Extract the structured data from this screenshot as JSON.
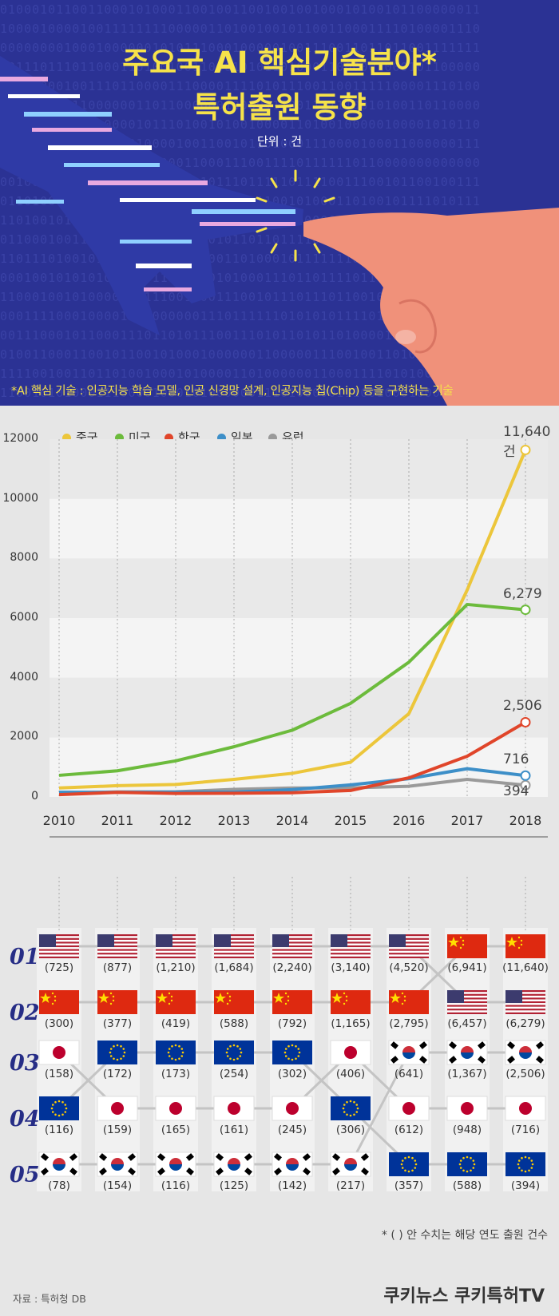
{
  "header": {
    "title_line1": "주요국 AI 핵심기술분야*",
    "title_line2": "특허출원 동향",
    "unit": "단위 : 건",
    "footnote": "*AI 핵심 기술 :  인공지능 학습 모델, 인공 신경망 설계, 인공지능 칩(Chip) 등을 구현하는 기술"
  },
  "colors": {
    "china": "#ecc63b",
    "usa": "#6cbb3c",
    "korea": "#e0452a",
    "japan": "#3d8fc8",
    "europe": "#9a9a9a",
    "header_bg": "#2b3294",
    "title": "#f6e24a"
  },
  "chart_data": {
    "type": "line",
    "x": [
      2010,
      2011,
      2012,
      2013,
      2014,
      2015,
      2016,
      2017,
      2018
    ],
    "ylim": [
      0,
      12000
    ],
    "yticks": [
      "0",
      "2000",
      "4000",
      "6000",
      "8000",
      "10000",
      "12000"
    ],
    "legend_position": "top-left",
    "series": [
      {
        "name": "중국",
        "key": "china",
        "values": [
          300,
          377,
          419,
          588,
          792,
          1165,
          2795,
          6941,
          11640
        ],
        "end_label": "11,640건"
      },
      {
        "name": "미국",
        "key": "usa",
        "values": [
          725,
          877,
          1210,
          1684,
          2240,
          3140,
          4520,
          6457,
          6279
        ],
        "end_label": "6,279"
      },
      {
        "name": "한국",
        "key": "korea",
        "values": [
          78,
          154,
          116,
          125,
          142,
          217,
          641,
          1367,
          2506
        ],
        "end_label": "2,506"
      },
      {
        "name": "일본",
        "key": "japan",
        "values": [
          158,
          159,
          165,
          161,
          245,
          406,
          612,
          948,
          716
        ],
        "end_label": "716"
      },
      {
        "name": "유럽",
        "key": "europe",
        "values": [
          116,
          172,
          173,
          254,
          302,
          306,
          357,
          588,
          394
        ],
        "end_label": "394"
      }
    ]
  },
  "ranking": {
    "ranks": [
      "01",
      "02",
      "03",
      "04",
      "05"
    ],
    "columns": [
      {
        "year": 2010,
        "entries": [
          [
            "usa",
            "(725)"
          ],
          [
            "china",
            "(300)"
          ],
          [
            "japan",
            "(158)"
          ],
          [
            "eu",
            "(116)"
          ],
          [
            "korea",
            "(78)"
          ]
        ]
      },
      {
        "year": 2011,
        "entries": [
          [
            "usa",
            "(877)"
          ],
          [
            "china",
            "(377)"
          ],
          [
            "eu",
            "(172)"
          ],
          [
            "japan",
            "(159)"
          ],
          [
            "korea",
            "(154)"
          ]
        ]
      },
      {
        "year": 2012,
        "entries": [
          [
            "usa",
            "(1,210)"
          ],
          [
            "china",
            "(419)"
          ],
          [
            "eu",
            "(173)"
          ],
          [
            "japan",
            "(165)"
          ],
          [
            "korea",
            "(116)"
          ]
        ]
      },
      {
        "year": 2013,
        "entries": [
          [
            "usa",
            "(1,684)"
          ],
          [
            "china",
            "(588)"
          ],
          [
            "eu",
            "(254)"
          ],
          [
            "japan",
            "(161)"
          ],
          [
            "korea",
            "(125)"
          ]
        ]
      },
      {
        "year": 2014,
        "entries": [
          [
            "usa",
            "(2,240)"
          ],
          [
            "china",
            "(792)"
          ],
          [
            "eu",
            "(302)"
          ],
          [
            "japan",
            "(245)"
          ],
          [
            "korea",
            "(142)"
          ]
        ]
      },
      {
        "year": 2015,
        "entries": [
          [
            "usa",
            "(3,140)"
          ],
          [
            "china",
            "(1,165)"
          ],
          [
            "japan",
            "(406)"
          ],
          [
            "eu",
            "(306)"
          ],
          [
            "korea",
            "(217)"
          ]
        ]
      },
      {
        "year": 2016,
        "entries": [
          [
            "usa",
            "(4,520)"
          ],
          [
            "china",
            "(2,795)"
          ],
          [
            "korea",
            "(641)"
          ],
          [
            "japan",
            "(612)"
          ],
          [
            "eu",
            "(357)"
          ]
        ]
      },
      {
        "year": 2017,
        "entries": [
          [
            "china",
            "(6,941)"
          ],
          [
            "usa",
            "(6,457)"
          ],
          [
            "korea",
            "(1,367)"
          ],
          [
            "japan",
            "(948)"
          ],
          [
            "eu",
            "(588)"
          ]
        ]
      },
      {
        "year": 2018,
        "entries": [
          [
            "china",
            "(11,640)"
          ],
          [
            "usa",
            "(6,279)"
          ],
          [
            "korea",
            "(2,506)"
          ],
          [
            "japan",
            "(716)"
          ],
          [
            "eu",
            "(394)"
          ]
        ]
      }
    ],
    "note": "* (      ) 안 수치는 해당 연도 출원 건수"
  },
  "footer": {
    "source": "자료 : 특허청 DB",
    "brand": "쿠키뉴스  쿠키특허TV"
  }
}
